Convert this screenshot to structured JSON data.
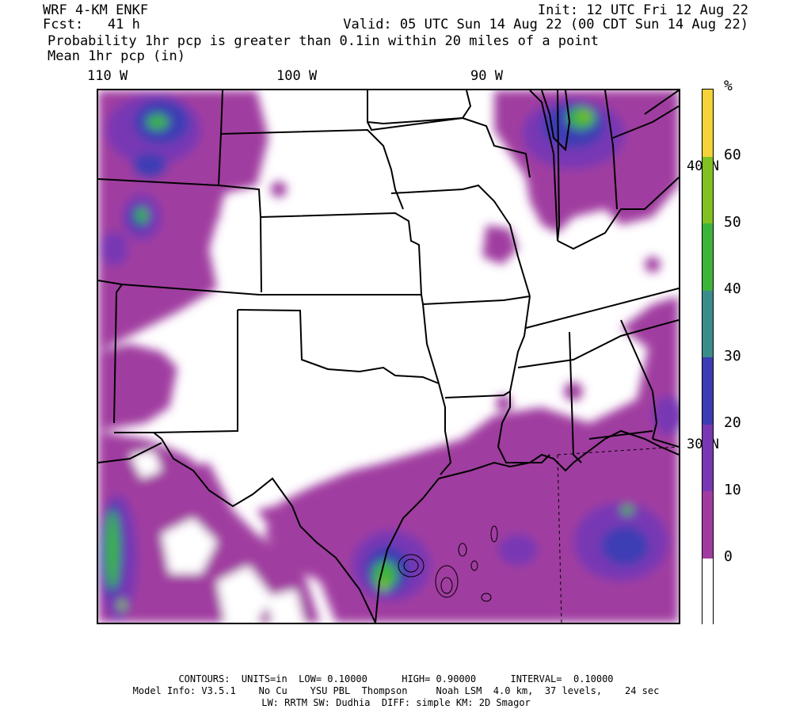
{
  "header": {
    "model": "WRF 4-KM ENKF",
    "init": "Init: 12 UTC Fri 12 Aug 22",
    "fcst": "Fcst:   41 h",
    "valid": "Valid: 05 UTC Sun 14 Aug 22 (00 CDT Sun 14 Aug 22)",
    "field1": "Probability 1hr pcp is greater than 0.1in within 20 miles of a point",
    "field2": "Mean 1hr pcp (in)"
  },
  "axes": {
    "lon_labels": [
      "110 W",
      "100 W",
      "90 W"
    ],
    "lat_labels": [
      "40 N",
      "30 N"
    ]
  },
  "colorbar": {
    "unit": "%",
    "labels": [
      "60",
      "50",
      "40",
      "30",
      "20",
      "10",
      "0"
    ],
    "colors": [
      "#f5d238",
      "#80c020",
      "#3cb43c",
      "#3c8c8c",
      "#3c3cb4",
      "#7838b4",
      "#a03ca0",
      "#ffffff"
    ]
  },
  "map": {
    "fill_color": "#a03ca0",
    "mid_color": "#7838b4",
    "blue_color": "#3c3cb4",
    "green_color": "#3cb43c",
    "lime_color": "#80c020",
    "border_color": "#000000",
    "frame_tick_color": "#ffffff"
  },
  "footer": {
    "line1": "CONTOURS:  UNITS=in  LOW= 0.10000      HIGH= 0.90000      INTERVAL=  0.10000",
    "line2": "Model Info: V3.5.1    No Cu    YSU PBL  Thompson     Noah LSM  4.0 km,  37 levels,    24 sec",
    "line3": "LW: RRTM SW: Dudhia  DIFF: simple KM: 2D Smagor"
  }
}
